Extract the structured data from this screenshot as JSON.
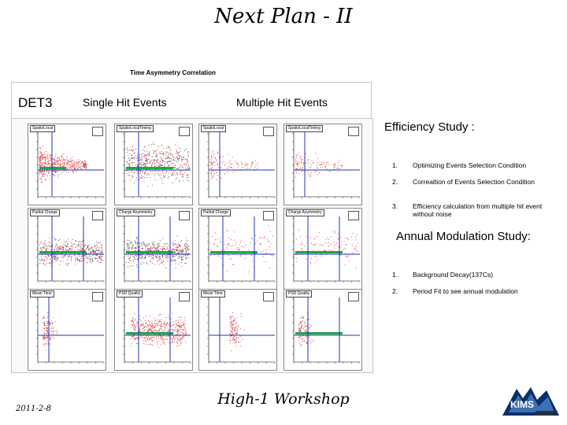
{
  "slide": {
    "title": "Next Plan - II",
    "figure_caption": "Time Asymmetry Correlation",
    "headers": {
      "det": "DET3",
      "single": "Single Hit Events",
      "multi": "Multiple Hit Events"
    },
    "panels": [
      {
        "title": "SpatioLocal"
      },
      {
        "title": "SpatioLocalTiming"
      },
      {
        "title": "SpatioLocal"
      },
      {
        "title": "SpatioLocalTiming"
      },
      {
        "title": "Partial Charge"
      },
      {
        "title": "Charge Asymmetry"
      },
      {
        "title": "Partial Charge"
      },
      {
        "title": "Charge Asymmetry"
      },
      {
        "title": "Mean Time"
      },
      {
        "title": "PSD Quality"
      },
      {
        "title": "Mean Time"
      },
      {
        "title": "PSD Quality"
      }
    ],
    "efficiency": {
      "title": "Efficiency Study :",
      "items": [
        {
          "num": "1.",
          "text": "Optimizing Events Selection Condition"
        },
        {
          "num": "2.",
          "text": "Correaltion of Events Selection Condition"
        },
        {
          "num": "3.",
          "text": "Efficiency calculation from multiple hit event without noise"
        }
      ]
    },
    "annual": {
      "title": "Annual Modulation Study:",
      "items": [
        {
          "num": "1.",
          "text": "Background Decay(137Cs)"
        },
        {
          "num": "2.",
          "text": "Period Fit to see annual modulation"
        }
      ]
    },
    "footer": {
      "date": "2011-2-8",
      "center": "High-1 Workshop",
      "logo_text": "KIMS"
    },
    "colors": {
      "points_red": "#d8202a",
      "points_black": "#222222",
      "fit_green": "#19a84a",
      "line_blue": "#2233bb"
    }
  }
}
